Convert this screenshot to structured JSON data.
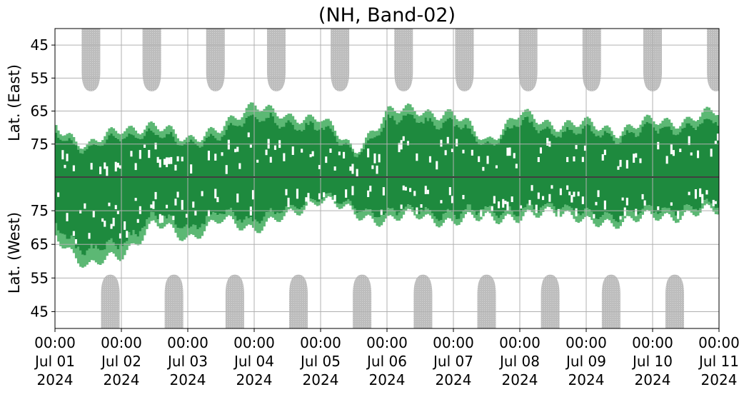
{
  "title": "(NH, Band-02)",
  "chart_data": {
    "type": "heatmap",
    "title": "(NH, Band-02)",
    "ylabel_top": "Lat. (East)",
    "ylabel_bottom": "Lat. (West)",
    "ylim_east": [
      40,
      85
    ],
    "ylim_west": [
      40,
      85
    ],
    "yticks_east": [
      "45",
      "55",
      "65",
      "75"
    ],
    "yticks_west": [
      "75",
      "65",
      "55",
      "45"
    ],
    "xlim": [
      "2024-07-01 00:00",
      "2024-07-11 00:00"
    ],
    "xticks": [
      {
        "time": "00:00",
        "date": "Jul 01",
        "year": "2024"
      },
      {
        "time": "00:00",
        "date": "Jul 02",
        "year": "2024"
      },
      {
        "time": "00:00",
        "date": "Jul 03",
        "year": "2024"
      },
      {
        "time": "00:00",
        "date": "Jul 04",
        "year": "2024"
      },
      {
        "time": "00:00",
        "date": "Jul 05",
        "year": "2024"
      },
      {
        "time": "00:00",
        "date": "Jul 06",
        "year": "2024"
      },
      {
        "time": "00:00",
        "date": "Jul 07",
        "year": "2024"
      },
      {
        "time": "00:00",
        "date": "Jul 08",
        "year": "2024"
      },
      {
        "time": "00:00",
        "date": "Jul 09",
        "year": "2024"
      },
      {
        "time": "00:00",
        "date": "Jul 10",
        "year": "2024"
      },
      {
        "time": "00:00",
        "date": "Jul 11",
        "year": "2024"
      }
    ],
    "grid": true,
    "colors": {
      "strong": "#1e8a3e",
      "weak": "#5cb874",
      "no_data": "#bdbdbd"
    },
    "no_data_east": [
      {
        "center": "2024-07-01 13:00",
        "min_lat": 59
      },
      {
        "center": "2024-07-02 11:00",
        "min_lat": 59
      },
      {
        "center": "2024-07-03 10:00",
        "min_lat": 59
      },
      {
        "center": "2024-07-04 08:00",
        "min_lat": 59
      },
      {
        "center": "2024-07-05 07:00",
        "min_lat": 59
      },
      {
        "center": "2024-07-06 06:00",
        "min_lat": 59
      },
      {
        "center": "2024-07-07 04:00",
        "min_lat": 59
      },
      {
        "center": "2024-07-08 03:00",
        "min_lat": 59
      },
      {
        "center": "2024-07-09 02:00",
        "min_lat": 59
      },
      {
        "center": "2024-07-10 00:00",
        "min_lat": 59
      },
      {
        "center": "2024-07-10 23:00",
        "min_lat": 59
      }
    ],
    "no_data_west": [
      {
        "center": "2024-07-01 20:00",
        "min_lat": 56
      },
      {
        "center": "2024-07-02 19:00",
        "min_lat": 56
      },
      {
        "center": "2024-07-03 17:00",
        "min_lat": 56
      },
      {
        "center": "2024-07-04 16:00",
        "min_lat": 56
      },
      {
        "center": "2024-07-05 15:00",
        "min_lat": 56
      },
      {
        "center": "2024-07-06 13:00",
        "min_lat": 56
      },
      {
        "center": "2024-07-07 12:00",
        "min_lat": 56
      },
      {
        "center": "2024-07-08 11:00",
        "min_lat": 56
      },
      {
        "center": "2024-07-09 09:00",
        "min_lat": 56
      },
      {
        "center": "2024-07-10 08:00",
        "min_lat": 56
      }
    ],
    "activity_east_min_lat": [
      {
        "date": "2024-07-01 00:00",
        "lat": 69
      },
      {
        "date": "2024-07-01 12:00",
        "lat": 76
      },
      {
        "date": "2024-07-02 00:00",
        "lat": 70
      },
      {
        "date": "2024-07-02 12:00",
        "lat": 70
      },
      {
        "date": "2024-07-03 00:00",
        "lat": 73
      },
      {
        "date": "2024-07-03 12:00",
        "lat": 71
      },
      {
        "date": "2024-07-04 00:00",
        "lat": 62
      },
      {
        "date": "2024-07-04 12:00",
        "lat": 68
      },
      {
        "date": "2024-07-05 00:00",
        "lat": 66
      },
      {
        "date": "2024-07-05 12:00",
        "lat": 78
      },
      {
        "date": "2024-07-06 00:00",
        "lat": 65
      },
      {
        "date": "2024-07-06 12:00",
        "lat": 65
      },
      {
        "date": "2024-07-07 00:00",
        "lat": 66
      },
      {
        "date": "2024-07-07 12:00",
        "lat": 74
      },
      {
        "date": "2024-07-08 00:00",
        "lat": 66
      },
      {
        "date": "2024-07-08 12:00",
        "lat": 69
      },
      {
        "date": "2024-07-09 00:00",
        "lat": 69
      },
      {
        "date": "2024-07-09 12:00",
        "lat": 71
      },
      {
        "date": "2024-07-10 00:00",
        "lat": 68
      },
      {
        "date": "2024-07-10 12:00",
        "lat": 68
      },
      {
        "date": "2024-07-11 00:00",
        "lat": 65
      }
    ],
    "activity_west_min_lat": [
      {
        "date": "2024-07-01 00:00",
        "lat": 68
      },
      {
        "date": "2024-07-01 12:00",
        "lat": 58
      },
      {
        "date": "2024-07-02 00:00",
        "lat": 62
      },
      {
        "date": "2024-07-02 12:00",
        "lat": 71
      },
      {
        "date": "2024-07-03 00:00",
        "lat": 67
      },
      {
        "date": "2024-07-03 12:00",
        "lat": 72
      },
      {
        "date": "2024-07-04 00:00",
        "lat": 70
      },
      {
        "date": "2024-07-04 12:00",
        "lat": 73
      },
      {
        "date": "2024-07-05 00:00",
        "lat": 79
      },
      {
        "date": "2024-07-05 12:00",
        "lat": 74
      },
      {
        "date": "2024-07-06 00:00",
        "lat": 72
      },
      {
        "date": "2024-07-06 12:00",
        "lat": 74
      },
      {
        "date": "2024-07-07 00:00",
        "lat": 71
      },
      {
        "date": "2024-07-07 12:00",
        "lat": 74
      },
      {
        "date": "2024-07-08 00:00",
        "lat": 72
      },
      {
        "date": "2024-07-08 12:00",
        "lat": 76
      },
      {
        "date": "2024-07-09 00:00",
        "lat": 71
      },
      {
        "date": "2024-07-09 12:00",
        "lat": 72
      },
      {
        "date": "2024-07-10 00:00",
        "lat": 73
      },
      {
        "date": "2024-07-10 12:00",
        "lat": 74
      },
      {
        "date": "2024-07-11 00:00",
        "lat": 75
      }
    ]
  }
}
